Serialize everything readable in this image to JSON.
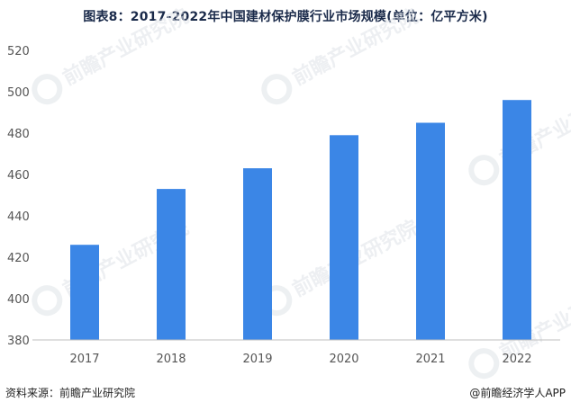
{
  "chart_data": {
    "type": "bar",
    "title": "图表8：2017-2022年中国建材保护膜行业市场规模(单位：亿平方米)",
    "categories": [
      "2017",
      "2018",
      "2019",
      "2020",
      "2021",
      "2022"
    ],
    "values": [
      426,
      453,
      463,
      479,
      485,
      496
    ],
    "ylim": [
      380,
      520
    ],
    "yticks": [
      380,
      400,
      420,
      440,
      460,
      480,
      500,
      520
    ],
    "bar_color": "#3b86e6",
    "grid": false
  },
  "footer": {
    "source": "资料来源：前瞻产业研究院",
    "brand": "@前瞻经济学人APP"
  },
  "watermark": {
    "text": "前瞻产业研究院"
  }
}
